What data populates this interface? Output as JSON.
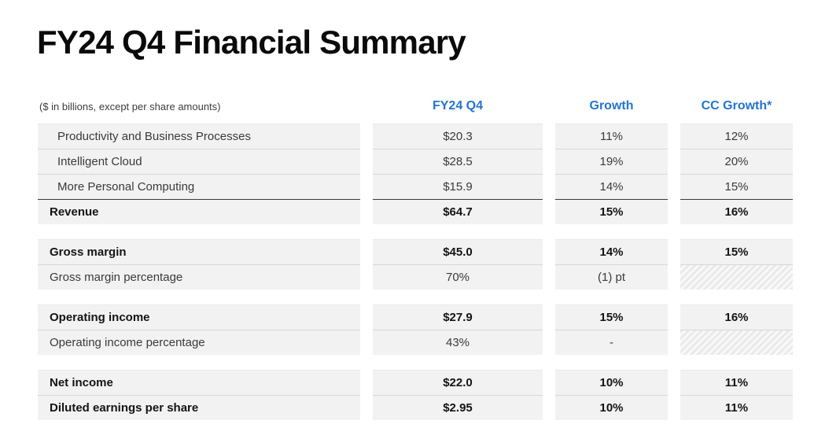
{
  "meta": {
    "accent_color": "#2374d0",
    "row_bg_color": "#f2f2f2"
  },
  "title": "FY24 Q4 Financial Summary",
  "header": {
    "note": "($ in billions, except per share amounts)",
    "columns": [
      "FY24 Q4",
      "Growth",
      "CC Growth*"
    ]
  },
  "table": {
    "blocks": [
      {
        "rows": [
          {
            "label": "Productivity and Business Processes",
            "values": [
              "$20.3",
              "11%",
              "12%"
            ],
            "indent": true,
            "bold": false,
            "total_rule": false,
            "hatched": []
          },
          {
            "label": "Intelligent Cloud",
            "values": [
              "$28.5",
              "19%",
              "20%"
            ],
            "indent": true,
            "bold": false,
            "total_rule": false,
            "hatched": []
          },
          {
            "label": "More Personal Computing",
            "values": [
              "$15.9",
              "14%",
              "15%"
            ],
            "indent": true,
            "bold": false,
            "total_rule": false,
            "hatched": []
          },
          {
            "label": "Revenue",
            "values": [
              "$64.7",
              "15%",
              "16%"
            ],
            "indent": false,
            "bold": true,
            "total_rule": true,
            "hatched": []
          }
        ]
      },
      {
        "rows": [
          {
            "label": "Gross margin",
            "values": [
              "$45.0",
              "14%",
              "15%"
            ],
            "indent": false,
            "bold": true,
            "total_rule": false,
            "hatched": []
          },
          {
            "label": "Gross margin percentage",
            "values": [
              "70%",
              "(1) pt",
              ""
            ],
            "indent": false,
            "bold": false,
            "total_rule": false,
            "hatched": [
              2
            ]
          }
        ]
      },
      {
        "rows": [
          {
            "label": "Operating income",
            "values": [
              "$27.9",
              "15%",
              "16%"
            ],
            "indent": false,
            "bold": true,
            "total_rule": false,
            "hatched": []
          },
          {
            "label": "Operating income percentage",
            "values": [
              "43%",
              "-",
              ""
            ],
            "indent": false,
            "bold": false,
            "total_rule": false,
            "hatched": [
              2
            ]
          }
        ]
      },
      {
        "rows": [
          {
            "label": "Net income",
            "values": [
              "$22.0",
              "10%",
              "11%"
            ],
            "indent": false,
            "bold": true,
            "total_rule": false,
            "hatched": []
          },
          {
            "label": "Diluted earnings per share",
            "values": [
              "$2.95",
              "10%",
              "11%"
            ],
            "indent": false,
            "bold": true,
            "total_rule": false,
            "hatched": []
          }
        ]
      }
    ]
  }
}
